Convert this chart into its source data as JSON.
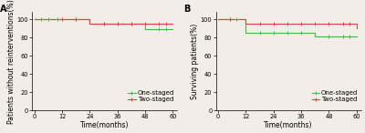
{
  "panel_A": {
    "label": "A",
    "ylabel": "Patients without reinterventions(%)",
    "xlabel": "Time(months)",
    "ylim": [
      0,
      108
    ],
    "xlim": [
      -1,
      62
    ],
    "yticks": [
      0,
      20,
      40,
      60,
      80,
      100
    ],
    "xticks": [
      0,
      12,
      24,
      36,
      48,
      60
    ],
    "one_staged": {
      "x": [
        0,
        3,
        6,
        10,
        18,
        24,
        24,
        48,
        48,
        54,
        57,
        60
      ],
      "y": [
        100,
        100,
        100,
        100,
        100,
        100,
        95,
        95,
        89,
        89,
        89,
        89
      ],
      "censors_x": [
        3,
        6,
        10,
        18,
        30,
        36,
        42,
        54,
        57
      ],
      "censors_y": [
        100,
        100,
        100,
        100,
        95,
        95,
        95,
        89,
        89
      ],
      "color": "#4db34d",
      "label": "One-staged"
    },
    "two_staged": {
      "x": [
        0,
        24,
        24,
        57,
        60
      ],
      "y": [
        100,
        100,
        95,
        95,
        95
      ],
      "censors_x": [
        12,
        18,
        30,
        36,
        42,
        48,
        54,
        57
      ],
      "censors_y": [
        100,
        100,
        95,
        95,
        95,
        95,
        95,
        95
      ],
      "color": "#e04040",
      "label": "Two-staged"
    }
  },
  "panel_B": {
    "label": "B",
    "ylabel": "Surviving patients(%)",
    "xlabel": "Time(months)",
    "ylim": [
      0,
      108
    ],
    "xlim": [
      -1,
      62
    ],
    "yticks": [
      0,
      20,
      40,
      60,
      80,
      100
    ],
    "xticks": [
      0,
      12,
      24,
      36,
      48,
      60
    ],
    "one_staged": {
      "x": [
        0,
        12,
        12,
        42,
        42,
        60
      ],
      "y": [
        100,
        100,
        85,
        85,
        81,
        81
      ],
      "censors_x": [
        5,
        8,
        18,
        24,
        30,
        36,
        48,
        54,
        57
      ],
      "censors_y": [
        100,
        100,
        85,
        85,
        85,
        85,
        81,
        81,
        81
      ],
      "color": "#4db34d",
      "label": "One-staged"
    },
    "two_staged": {
      "x": [
        0,
        12,
        12,
        57,
        60
      ],
      "y": [
        100,
        100,
        95,
        95,
        90
      ],
      "censors_x": [
        5,
        18,
        24,
        30,
        36,
        42,
        48,
        54,
        57
      ],
      "censors_y": [
        100,
        95,
        95,
        95,
        95,
        95,
        95,
        95,
        95
      ],
      "color": "#e04040",
      "label": "Two-staged"
    }
  },
  "background_color": "#f2ede8",
  "legend_fontsize": 5.0,
  "axis_fontsize": 5.5,
  "tick_fontsize": 4.8,
  "label_fontsize": 7
}
